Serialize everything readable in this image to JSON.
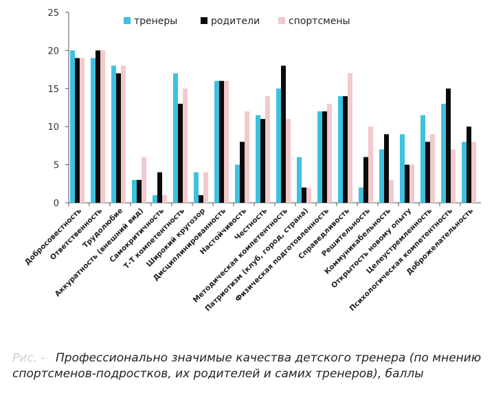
{
  "chart_data": {
    "type": "bar",
    "title": "",
    "xlabel": "",
    "ylabel": "",
    "ylim": [
      0,
      25
    ],
    "yticks": [
      0,
      5,
      10,
      15,
      20,
      25
    ],
    "grid": false,
    "legend_position": "top",
    "categories": [
      "Добросовестность",
      "Ответственность",
      "Трудолюбие",
      "Аккуратность (внешний вид)",
      "Самокритичность",
      "Т-Т компетентность",
      "Широкий кругозор",
      "Дисциплинированность",
      "Настойчивость",
      "Честность",
      "Методическая компетентность",
      "Патриотизм (клуб, город, страна)",
      "Физическая подготовленность",
      "Справедливость",
      "Решительность",
      "Коммуникабельность",
      "Открытость новому опыту",
      "Целеустремленность",
      "Психологическая компетентность",
      "Доброжелательность"
    ],
    "series": [
      {
        "name": "тренеры",
        "color": "#3ec1e0",
        "values": [
          20,
          19,
          18,
          3,
          1,
          17,
          4,
          16,
          5,
          11.5,
          15,
          6,
          12,
          14,
          2,
          7,
          9,
          11.5,
          13,
          8
        ]
      },
      {
        "name": "родители",
        "color": "#0a0a0a",
        "values": [
          19,
          20,
          17,
          3,
          4,
          13,
          1,
          16,
          8,
          11,
          18,
          2,
          12,
          14,
          6,
          9,
          5,
          8,
          15,
          10
        ]
      },
      {
        "name": "спортсмены",
        "color": "#f2c9cc",
        "values": [
          19,
          20,
          18,
          6,
          1,
          15,
          4,
          16,
          12,
          14,
          11,
          2,
          13,
          17,
          10,
          3,
          5,
          9,
          7,
          8
        ]
      }
    ]
  },
  "caption": {
    "prefix": "Рис. -",
    "text": "Профессионально значимые качества детского тренера (по мнению спортсменов-подростков, их родителей и самих тренеров), баллы"
  }
}
